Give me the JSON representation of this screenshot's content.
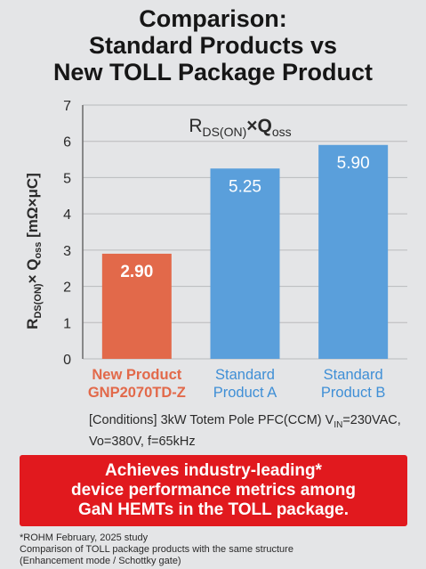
{
  "header": {
    "line1": "Comparison:",
    "line2": "Standard Products vs",
    "line3": "New TOLL Package Product"
  },
  "chart_data": {
    "type": "bar",
    "title": {
      "main": "R",
      "sub1": "DS(ON)",
      "mid": "×Q",
      "sub2": "oss"
    },
    "ylabel": {
      "p1": "R",
      "s1": "DS(ON)",
      "p2": "× Q",
      "s2": "oss",
      "p3": " [mΩ×μC]"
    },
    "ylim": [
      0,
      7
    ],
    "yticks": [
      "0",
      "1",
      "2",
      "3",
      "4",
      "5",
      "6",
      "7"
    ],
    "grid": true,
    "categories": [
      [
        "New Product",
        "GNP2070TD-Z"
      ],
      [
        "Standard",
        "Product A"
      ],
      [
        "Standard",
        "Product B"
      ]
    ],
    "values": [
      2.9,
      5.25,
      5.9
    ],
    "value_labels": [
      "2.90",
      "5.25",
      "5.90"
    ],
    "bar_colors": [
      "#e2694a",
      "#5a9fdb",
      "#5a9fdb"
    ],
    "category_colors": [
      "#e2694a",
      "#3f8fd6",
      "#3f8fd6"
    ]
  },
  "conditions": {
    "line1_pre": "[Conditions] 3kW Totem Pole PFC(CCM) V",
    "line1_sub": "IN",
    "line1_post": "=230VAC,",
    "line2": "Vo=380V, f=65kHz"
  },
  "banner": {
    "line1": "Achieves industry-leading*",
    "line2": "device performance metrics among",
    "line3": "GaN HEMTs in the TOLL package."
  },
  "footnotes": {
    "line1": "*ROHM February, 2025 study",
    "line2": "Comparison of TOLL package products with the same structure",
    "line3": "(Enhancement mode / Schottky gate)"
  }
}
